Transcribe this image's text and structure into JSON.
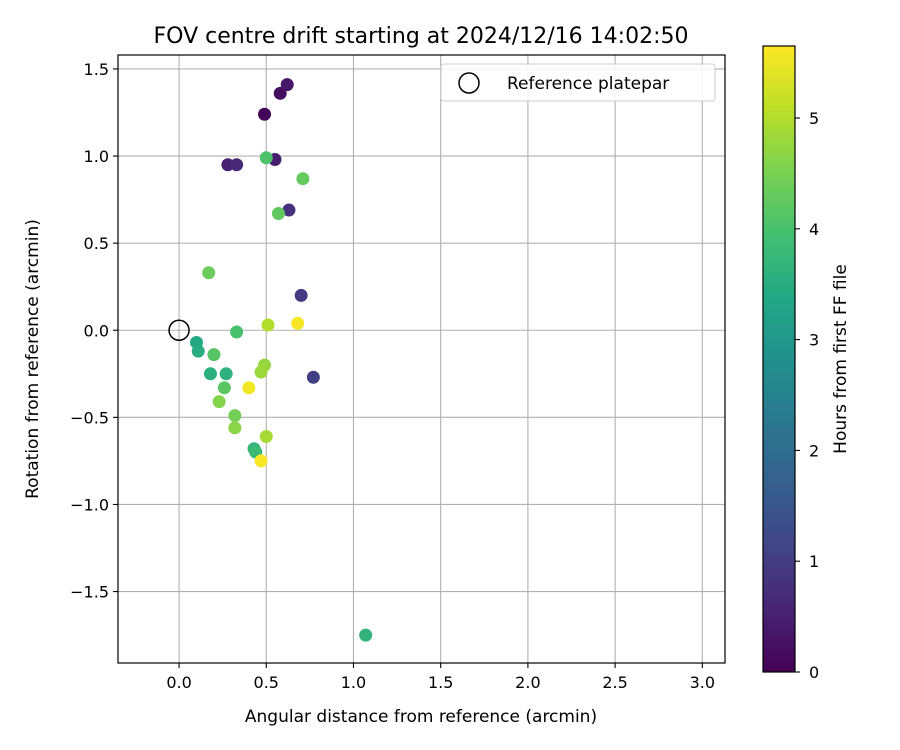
{
  "chart_data": {
    "type": "scatter",
    "title": "FOV centre drift starting at 2024/12/16 14:02:50",
    "xlabel": "Angular distance from reference (arcmin)",
    "ylabel": "Rotation from reference (arcmin)",
    "xlim": [
      -0.35,
      3.13
    ],
    "ylim": [
      -1.91,
      1.58
    ],
    "xticks": [
      0.0,
      0.5,
      1.0,
      1.5,
      2.0,
      2.5,
      3.0
    ],
    "xtick_labels": [
      "0.0",
      "0.5",
      "1.0",
      "1.5",
      "2.0",
      "2.5",
      "3.0"
    ],
    "yticks": [
      1.5,
      1.0,
      0.5,
      0.0,
      -0.5,
      -1.0,
      -1.5
    ],
    "ytick_labels": [
      "1.5",
      "1.0",
      "0.5",
      "0.0",
      "−0.5",
      "−1.0",
      "−1.5"
    ],
    "grid": true,
    "legend": {
      "position": "top-right",
      "entries": [
        {
          "label": "Reference platepar",
          "marker": "open-circle"
        }
      ]
    },
    "reference_point": {
      "x": 0.0,
      "y": 0.0
    },
    "colorbar": {
      "label": "Hours from first FF file",
      "colormap": "viridis",
      "range": [
        0,
        5.65
      ],
      "ticks": [
        0,
        1,
        2,
        3,
        4,
        5
      ],
      "tick_labels": [
        "0",
        "1",
        "2",
        "3",
        "4",
        "5"
      ]
    },
    "points": [
      {
        "x": 0.49,
        "y": 1.24,
        "hours": 0.05
      },
      {
        "x": 0.58,
        "y": 1.36,
        "hours": 0.2
      },
      {
        "x": 0.62,
        "y": 1.41,
        "hours": 0.35
      },
      {
        "x": 0.55,
        "y": 0.98,
        "hours": 0.45
      },
      {
        "x": 0.28,
        "y": 0.95,
        "hours": 0.55
      },
      {
        "x": 0.33,
        "y": 0.95,
        "hours": 0.65
      },
      {
        "x": 0.63,
        "y": 0.69,
        "hours": 0.8
      },
      {
        "x": 0.7,
        "y": 0.2,
        "hours": 0.95
      },
      {
        "x": 0.77,
        "y": -0.27,
        "hours": 1.05
      },
      {
        "x": 0.1,
        "y": -0.07,
        "hours": 3.4
      },
      {
        "x": 0.11,
        "y": -0.12,
        "hours": 3.5
      },
      {
        "x": 0.18,
        "y": -0.25,
        "hours": 3.55
      },
      {
        "x": 0.27,
        "y": -0.25,
        "hours": 3.6
      },
      {
        "x": 1.07,
        "y": -1.75,
        "hours": 3.65
      },
      {
        "x": 0.43,
        "y": -0.68,
        "hours": 3.7
      },
      {
        "x": 0.44,
        "y": -0.7,
        "hours": 3.8
      },
      {
        "x": 0.33,
        "y": -0.01,
        "hours": 4.0
      },
      {
        "x": 0.5,
        "y": 0.99,
        "hours": 4.05
      },
      {
        "x": 0.2,
        "y": -0.14,
        "hours": 4.15
      },
      {
        "x": 0.26,
        "y": -0.33,
        "hours": 4.2
      },
      {
        "x": 0.57,
        "y": 0.67,
        "hours": 4.25
      },
      {
        "x": 0.71,
        "y": 0.87,
        "hours": 4.3
      },
      {
        "x": 0.17,
        "y": 0.33,
        "hours": 4.35
      },
      {
        "x": 0.32,
        "y": -0.49,
        "hours": 4.45
      },
      {
        "x": 0.23,
        "y": -0.41,
        "hours": 4.6
      },
      {
        "x": 0.32,
        "y": -0.56,
        "hours": 4.65
      },
      {
        "x": 0.49,
        "y": -0.2,
        "hours": 4.75
      },
      {
        "x": 0.47,
        "y": -0.24,
        "hours": 4.8
      },
      {
        "x": 0.5,
        "y": -0.61,
        "hours": 4.9
      },
      {
        "x": 0.51,
        "y": 0.03,
        "hours": 5.0
      },
      {
        "x": 0.4,
        "y": -0.33,
        "hours": 5.55
      },
      {
        "x": 0.68,
        "y": 0.04,
        "hours": 5.6
      },
      {
        "x": 0.47,
        "y": -0.75,
        "hours": 5.62
      }
    ]
  }
}
